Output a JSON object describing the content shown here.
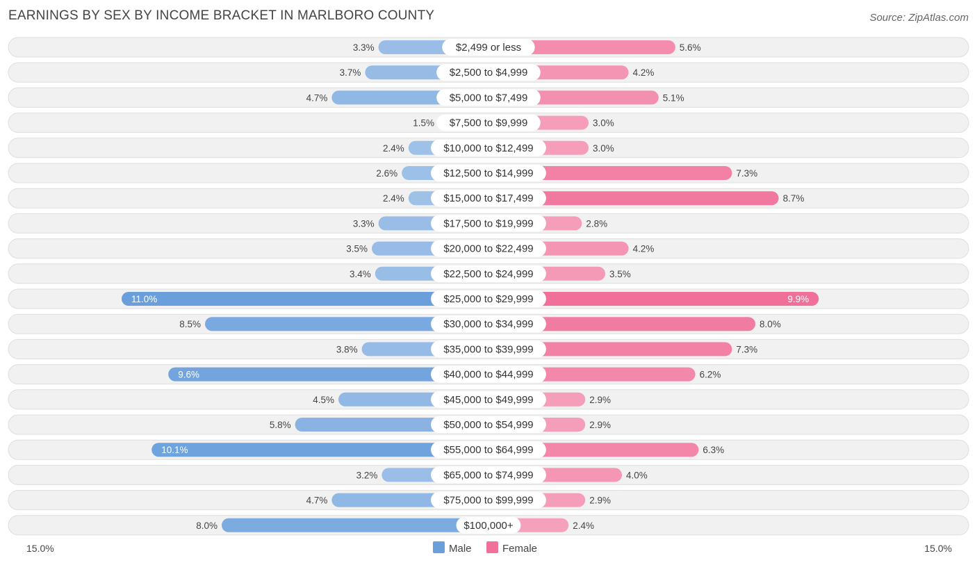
{
  "chart_data": {
    "type": "bar",
    "orientation": "horizontal-diverging",
    "title": "EARNINGS BY SEX BY INCOME BRACKET IN MARLBORO COUNTY",
    "source": "Source: ZipAtlas.com",
    "categories": [
      "$2,499 or less",
      "$2,500 to $4,999",
      "$5,000 to $7,499",
      "$7,500 to $9,999",
      "$10,000 to $12,499",
      "$12,500 to $14,999",
      "$15,000 to $17,499",
      "$17,500 to $19,999",
      "$20,000 to $22,499",
      "$22,500 to $24,999",
      "$25,000 to $29,999",
      "$30,000 to $34,999",
      "$35,000 to $39,999",
      "$40,000 to $44,999",
      "$45,000 to $49,999",
      "$50,000 to $54,999",
      "$55,000 to $64,999",
      "$65,000 to $74,999",
      "$75,000 to $99,999",
      "$100,000+"
    ],
    "series": [
      {
        "name": "Male",
        "color": "#6a9fdc",
        "values": [
          3.3,
          3.7,
          4.7,
          1.5,
          2.4,
          2.6,
          2.4,
          3.3,
          3.5,
          3.4,
          11.0,
          8.5,
          3.8,
          9.6,
          4.5,
          5.8,
          10.1,
          3.2,
          4.7,
          8.0
        ],
        "labels": [
          "3.3%",
          "3.7%",
          "4.7%",
          "1.5%",
          "2.4%",
          "2.6%",
          "2.4%",
          "3.3%",
          "3.5%",
          "3.4%",
          "11.0%",
          "8.5%",
          "3.8%",
          "9.6%",
          "4.5%",
          "5.8%",
          "10.1%",
          "3.2%",
          "4.7%",
          "8.0%"
        ]
      },
      {
        "name": "Female",
        "color": "#f07099",
        "values": [
          5.6,
          4.2,
          5.1,
          3.0,
          3.0,
          7.3,
          8.7,
          2.8,
          4.2,
          3.5,
          9.9,
          8.0,
          7.3,
          6.2,
          2.9,
          2.9,
          6.3,
          4.0,
          2.9,
          2.4
        ],
        "labels": [
          "5.6%",
          "4.2%",
          "5.1%",
          "3.0%",
          "3.0%",
          "7.3%",
          "8.7%",
          "2.8%",
          "4.2%",
          "3.5%",
          "9.9%",
          "8.0%",
          "7.3%",
          "6.2%",
          "2.9%",
          "2.9%",
          "6.3%",
          "4.0%",
          "2.9%",
          "2.4%"
        ]
      }
    ],
    "xlim": [
      -15.0,
      15.0
    ],
    "axis_left_label": "15.0%",
    "axis_right_label": "15.0%",
    "legend": [
      "Male",
      "Female"
    ],
    "legend_position": "bottom-center"
  }
}
